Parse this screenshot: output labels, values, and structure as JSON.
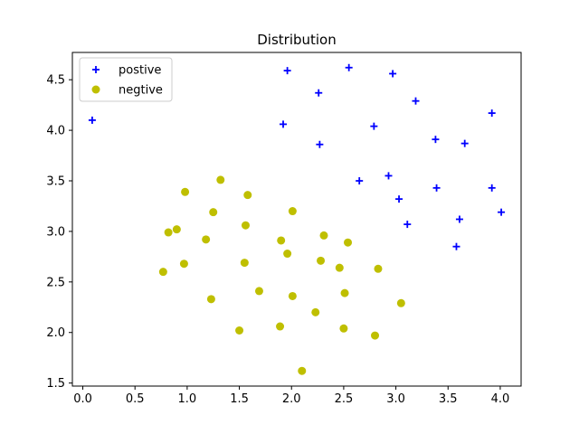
{
  "chart_data": {
    "type": "scatter",
    "title": "Distribution",
    "xlabel": "",
    "ylabel": "",
    "xlim": [
      -0.1,
      4.2
    ],
    "ylim": [
      1.47,
      4.77
    ],
    "xticks": [
      0.0,
      0.5,
      1.0,
      1.5,
      2.0,
      2.5,
      3.0,
      3.5,
      4.0
    ],
    "xtick_labels": [
      "0.0",
      "0.5",
      "1.0",
      "1.5",
      "2.0",
      "2.5",
      "3.0",
      "3.5",
      "4.0"
    ],
    "yticks": [
      1.5,
      2.0,
      2.5,
      3.0,
      3.5,
      4.0,
      4.5
    ],
    "ytick_labels": [
      "1.5",
      "2.0",
      "2.5",
      "3.0",
      "3.5",
      "4.0",
      "4.5"
    ],
    "grid": false,
    "legend_position": "top-left",
    "series": [
      {
        "name": "postive",
        "marker": "plus",
        "color": "#0000ff",
        "points": [
          [
            0.09,
            4.1
          ],
          [
            1.96,
            4.59
          ],
          [
            2.55,
            4.62
          ],
          [
            2.97,
            4.56
          ],
          [
            2.26,
            4.37
          ],
          [
            3.19,
            4.29
          ],
          [
            1.92,
            4.06
          ],
          [
            2.79,
            4.04
          ],
          [
            3.92,
            4.17
          ],
          [
            2.27,
            3.86
          ],
          [
            3.38,
            3.91
          ],
          [
            3.66,
            3.87
          ],
          [
            2.65,
            3.5
          ],
          [
            2.93,
            3.55
          ],
          [
            3.03,
            3.32
          ],
          [
            3.39,
            3.43
          ],
          [
            3.92,
            3.43
          ],
          [
            3.11,
            3.07
          ],
          [
            3.61,
            3.12
          ],
          [
            4.01,
            3.19
          ],
          [
            3.58,
            2.85
          ]
        ]
      },
      {
        "name": "negtive",
        "marker": "circle",
        "color": "#bfbf00",
        "points": [
          [
            1.32,
            3.51
          ],
          [
            0.98,
            3.39
          ],
          [
            1.58,
            3.36
          ],
          [
            1.25,
            3.19
          ],
          [
            2.01,
            3.2
          ],
          [
            0.9,
            3.02
          ],
          [
            0.82,
            2.99
          ],
          [
            1.56,
            3.06
          ],
          [
            1.18,
            2.92
          ],
          [
            1.9,
            2.91
          ],
          [
            2.31,
            2.96
          ],
          [
            2.54,
            2.89
          ],
          [
            1.96,
            2.78
          ],
          [
            0.77,
            2.6
          ],
          [
            0.97,
            2.68
          ],
          [
            1.55,
            2.69
          ],
          [
            2.28,
            2.71
          ],
          [
            2.46,
            2.64
          ],
          [
            2.83,
            2.63
          ],
          [
            1.69,
            2.41
          ],
          [
            2.51,
            2.39
          ],
          [
            1.23,
            2.33
          ],
          [
            2.01,
            2.36
          ],
          [
            3.05,
            2.29
          ],
          [
            2.23,
            2.2
          ],
          [
            1.89,
            2.06
          ],
          [
            1.5,
            2.02
          ],
          [
            2.5,
            2.04
          ],
          [
            2.8,
            1.97
          ],
          [
            2.1,
            1.62
          ]
        ]
      }
    ]
  }
}
